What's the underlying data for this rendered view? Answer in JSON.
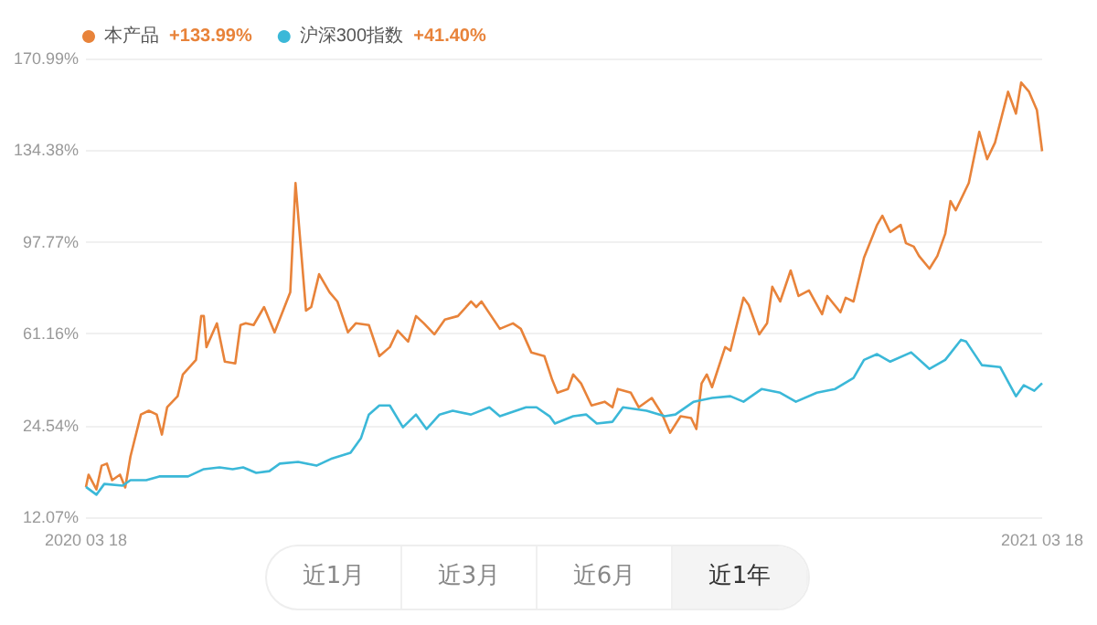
{
  "chart_data": {
    "type": "line",
    "legend": "top left",
    "grid": "y",
    "marker": "none",
    "line_style": "solid",
    "xlim": [
      "2020-03-18",
      "2021-03-18"
    ],
    "xticks": [
      {
        "value": "2020-03-18",
        "label": "2020 03 18"
      },
      {
        "value": "2021-03-18",
        "label": "2021 03 18"
      }
    ],
    "ylim": [
      -12.07,
      170.99
    ],
    "yticks": [
      {
        "value": -12.07,
        "label": "12.07%"
      },
      {
        "value": 24.54,
        "label": "24.54%"
      },
      {
        "value": 61.16,
        "label": "61.16%"
      },
      {
        "value": 97.77,
        "label": "97.77%"
      },
      {
        "value": 134.38,
        "label": "134.38%"
      },
      {
        "value": 170.99,
        "label": "170.99%"
      }
    ],
    "annotations": [
      "+133.99%",
      "+41.40%",
      "近1月",
      "近3月",
      "近6月",
      "近1年"
    ],
    "series": [
      {
        "name": "本产品",
        "color": "#e8833a",
        "x": [
          "2020-03-18",
          "2020-03-19",
          "2020-03-22",
          "2020-03-24",
          "2020-03-26",
          "2020-03-28",
          "2020-03-31",
          "2020-04-02",
          "2020-04-04",
          "2020-04-08",
          "2020-04-11",
          "2020-04-14",
          "2020-04-16",
          "2020-04-18",
          "2020-04-22",
          "2020-04-24",
          "2020-04-29",
          "2020-05-01",
          "2020-05-02",
          "2020-05-03",
          "2020-05-07",
          "2020-05-10",
          "2020-05-14",
          "2020-05-16",
          "2020-05-18",
          "2020-05-21",
          "2020-05-25",
          "2020-05-29",
          "2020-06-04",
          "2020-06-06",
          "2020-06-10",
          "2020-06-12",
          "2020-06-15",
          "2020-06-19",
          "2020-06-22",
          "2020-06-26",
          "2020-06-29",
          "2020-07-04",
          "2020-07-08",
          "2020-07-12",
          "2020-07-15",
          "2020-07-19",
          "2020-07-22",
          "2020-07-25",
          "2020-07-29",
          "2020-08-02",
          "2020-08-07",
          "2020-08-12",
          "2020-08-14",
          "2020-08-16",
          "2020-08-23",
          "2020-08-28",
          "2020-08-31",
          "2020-09-04",
          "2020-09-09",
          "2020-09-12",
          "2020-09-14",
          "2020-09-18",
          "2020-09-20",
          "2020-09-23",
          "2020-09-27",
          "2020-10-02",
          "2020-10-05",
          "2020-10-07",
          "2020-10-12",
          "2020-10-15",
          "2020-10-20",
          "2020-10-24",
          "2020-10-27",
          "2020-10-31",
          "2020-11-04",
          "2020-11-06",
          "2020-11-08",
          "2020-11-10",
          "2020-11-12",
          "2020-11-17",
          "2020-11-19",
          "2020-11-24",
          "2020-11-26",
          "2020-11-30",
          "2020-12-03",
          "2020-12-05",
          "2020-12-08",
          "2020-12-12",
          "2020-12-15",
          "2020-12-19",
          "2020-12-24",
          "2020-12-26",
          "2020-12-31",
          "2021-01-02",
          "2021-01-05",
          "2021-01-09",
          "2021-01-14",
          "2021-01-16",
          "2021-01-19",
          "2021-01-23",
          "2021-01-25",
          "2021-01-28",
          "2021-01-30",
          "2021-02-03",
          "2021-02-06",
          "2021-02-09",
          "2021-02-11",
          "2021-02-13",
          "2021-02-18",
          "2021-02-22",
          "2021-02-25",
          "2021-02-28",
          "2021-03-05",
          "2021-03-08",
          "2021-03-10",
          "2021-03-13",
          "2021-03-16",
          "2021-03-18"
        ],
        "values": [
          0,
          4.9,
          -1,
          8.5,
          9.3,
          2.7,
          4.9,
          -0.2,
          12.2,
          28.9,
          30.4,
          28.9,
          20.9,
          31.8,
          36.2,
          44.9,
          50.7,
          68.2,
          68.2,
          55.8,
          65.3,
          50.0,
          49.3,
          64.6,
          65.3,
          64.6,
          71.8,
          61.7,
          77.7,
          121.3,
          70.4,
          71.8,
          84.9,
          77.7,
          74.0,
          61.7,
          65.3,
          64.6,
          52.2,
          55.8,
          62.4,
          58.0,
          68.2,
          65.3,
          60.9,
          66.8,
          68.2,
          74.0,
          71.8,
          74.0,
          63.1,
          65.3,
          63.1,
          53.7,
          52.2,
          42.7,
          37.6,
          39.1,
          44.9,
          41.3,
          32.5,
          34.0,
          31.8,
          39.1,
          37.6,
          31.8,
          35.5,
          28.9,
          21.6,
          28.2,
          27.5,
          23.1,
          41.3,
          44.9,
          39.8,
          55.8,
          54.4,
          75.5,
          72.6,
          60.9,
          65.3,
          79.9,
          74.0,
          86.4,
          76.2,
          78.4,
          68.9,
          76.2,
          69.7,
          75.5,
          74.0,
          91.5,
          104.6,
          108.2,
          101.7,
          104.6,
          97.3,
          95.9,
          92.2,
          87.1,
          92.2,
          101.0,
          114.1,
          110.4,
          121.3,
          141.7,
          130.8,
          137.4,
          157.7,
          149.0,
          161.4,
          157.7,
          150.4,
          133.99
        ]
      },
      {
        "name": "沪深300指数",
        "color": "#3bb8d8",
        "x": [
          "2020-03-18",
          "2020-03-22",
          "2020-03-25",
          "2020-04-01",
          "2020-04-04",
          "2020-04-10",
          "2020-04-15",
          "2020-04-26",
          "2020-05-02",
          "2020-05-08",
          "2020-05-13",
          "2020-05-17",
          "2020-05-22",
          "2020-05-27",
          "2020-05-31",
          "2020-06-07",
          "2020-06-14",
          "2020-06-20",
          "2020-06-27",
          "2020-07-01",
          "2020-07-04",
          "2020-07-08",
          "2020-07-12",
          "2020-07-17",
          "2020-07-22",
          "2020-07-26",
          "2020-07-31",
          "2020-08-05",
          "2020-08-12",
          "2020-08-19",
          "2020-08-23",
          "2020-09-02",
          "2020-09-06",
          "2020-09-11",
          "2020-09-13",
          "2020-09-20",
          "2020-09-25",
          "2020-09-29",
          "2020-10-05",
          "2020-10-09",
          "2020-10-18",
          "2020-10-25",
          "2020-10-29",
          "2020-11-05",
          "2020-11-12",
          "2020-11-19",
          "2020-11-24",
          "2020-12-01",
          "2020-12-08",
          "2020-12-14",
          "2020-12-22",
          "2020-12-29",
          "2021-01-05",
          "2021-01-09",
          "2021-01-14",
          "2021-01-19",
          "2021-01-27",
          "2021-02-03",
          "2021-02-09",
          "2021-02-15",
          "2021-02-17",
          "2021-02-23",
          "2021-03-02",
          "2021-03-08",
          "2021-03-11",
          "2021-03-15",
          "2021-03-18"
        ],
        "values": [
          0,
          -3.1,
          1.2,
          0.5,
          2.7,
          2.7,
          4.2,
          4.2,
          7.1,
          7.8,
          7.1,
          7.8,
          5.6,
          6.3,
          9.3,
          10.0,
          8.5,
          11.4,
          13.6,
          19.5,
          28.9,
          32.5,
          32.5,
          23.8,
          28.9,
          23.1,
          28.9,
          30.4,
          28.9,
          31.8,
          28.2,
          31.8,
          31.8,
          28.2,
          25.3,
          28.2,
          28.9,
          25.3,
          26.0,
          31.8,
          30.4,
          28.2,
          28.9,
          34.0,
          35.5,
          36.2,
          34.0,
          39.1,
          37.6,
          34.0,
          37.6,
          39.1,
          43.5,
          50.7,
          53.0,
          50.0,
          53.7,
          47.1,
          50.7,
          58.7,
          58.0,
          48.6,
          47.8,
          36.2,
          40.6,
          38.4,
          41.4
        ]
      }
    ]
  }
}
